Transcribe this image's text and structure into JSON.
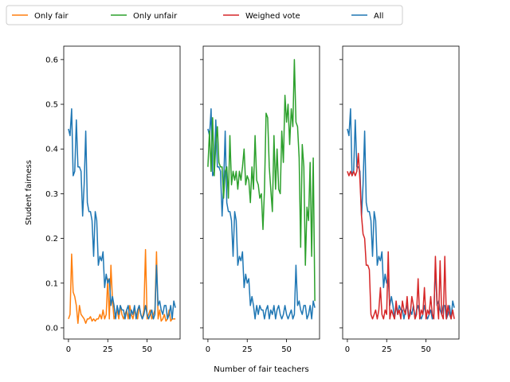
{
  "legend": [
    {
      "label": "Only fair",
      "color": "#ff7f0e"
    },
    {
      "label": "Only unfair",
      "color": "#2ca02c"
    },
    {
      "label": "Weighed vote",
      "color": "#d62728"
    },
    {
      "label": "All",
      "color": "#1f77b4"
    }
  ],
  "chart_data": {
    "type": "line",
    "xlabel": "Number of fair teachers",
    "ylabel": "Student fairness",
    "xlim": [
      -3,
      71
    ],
    "ylim": [
      -0.025,
      0.63
    ],
    "xticks": [
      0,
      25,
      50
    ],
    "yticks": [
      0.0,
      0.1,
      0.2,
      0.3,
      0.4,
      0.5,
      0.6
    ],
    "ytick_labels": [
      "0.0",
      "0.1",
      "0.2",
      "0.3",
      "0.4",
      "0.5",
      "0.6"
    ],
    "x": [
      0,
      1,
      2,
      3,
      4,
      5,
      6,
      7,
      8,
      9,
      10,
      11,
      12,
      13,
      14,
      15,
      16,
      17,
      18,
      19,
      20,
      21,
      22,
      23,
      24,
      25,
      26,
      27,
      28,
      29,
      30,
      31,
      32,
      33,
      34,
      35,
      36,
      37,
      38,
      39,
      40,
      41,
      42,
      43,
      44,
      45,
      46,
      47,
      48,
      49,
      50,
      51,
      52,
      53,
      54,
      55,
      56,
      57,
      58,
      59,
      60,
      61,
      62,
      63,
      64,
      65,
      66,
      67,
      68
    ],
    "series": [
      {
        "name": "All",
        "color": "#1f77b4",
        "values": [
          0.445,
          0.43,
          0.49,
          0.34,
          0.35,
          0.465,
          0.36,
          0.36,
          0.35,
          0.25,
          0.32,
          0.44,
          0.28,
          0.26,
          0.26,
          0.24,
          0.16,
          0.26,
          0.24,
          0.14,
          0.16,
          0.15,
          0.17,
          0.09,
          0.12,
          0.1,
          0.11,
          0.05,
          0.07,
          0.05,
          0.02,
          0.05,
          0.03,
          0.05,
          0.04,
          0.04,
          0.02,
          0.04,
          0.05,
          0.02,
          0.04,
          0.03,
          0.05,
          0.02,
          0.04,
          0.05,
          0.03,
          0.02,
          0.03,
          0.05,
          0.03,
          0.02,
          0.03,
          0.04,
          0.02,
          0.03,
          0.14,
          0.05,
          0.06,
          0.04,
          0.03,
          0.05,
          0.05,
          0.02,
          0.03,
          0.05,
          0.02,
          0.06,
          0.045
        ]
      },
      {
        "name": "Only fair",
        "color": "#ff7f0e",
        "values": [
          0.02,
          0.03,
          0.165,
          0.08,
          0.07,
          0.05,
          0.01,
          0.05,
          0.03,
          0.025,
          0.02,
          0.01,
          0.02,
          0.02,
          0.025,
          0.015,
          0.02,
          0.015,
          0.02,
          0.02,
          0.03,
          0.02,
          0.04,
          0.02,
          0.03,
          0.11,
          0.02,
          0.14,
          0.06,
          0.02,
          0.03,
          0.04,
          0.02,
          0.05,
          0.03,
          0.02,
          0.03,
          0.04,
          0.02,
          0.05,
          0.03,
          0.02,
          0.04,
          0.03,
          0.02,
          0.05,
          0.03,
          0.02,
          0.04,
          0.175,
          0.02,
          0.03,
          0.04,
          0.02,
          0.03,
          0.04,
          0.17,
          0.02,
          0.04,
          0.015,
          0.02,
          0.03,
          0.015,
          0.02,
          0.04,
          0.015,
          0.02,
          0.02,
          0.02
        ]
      },
      {
        "name": "Only unfair",
        "color": "#2ca02c",
        "values": [
          0.36,
          0.44,
          0.35,
          0.47,
          0.34,
          0.41,
          0.45,
          0.37,
          0.36,
          0.36,
          0.29,
          0.35,
          0.36,
          0.29,
          0.43,
          0.32,
          0.35,
          0.33,
          0.35,
          0.31,
          0.35,
          0.33,
          0.36,
          0.4,
          0.32,
          0.34,
          0.33,
          0.28,
          0.36,
          0.31,
          0.43,
          0.33,
          0.32,
          0.29,
          0.3,
          0.22,
          0.31,
          0.48,
          0.47,
          0.36,
          0.31,
          0.26,
          0.43,
          0.31,
          0.4,
          0.31,
          0.3,
          0.44,
          0.37,
          0.52,
          0.46,
          0.5,
          0.41,
          0.49,
          0.45,
          0.6,
          0.46,
          0.45,
          0.38,
          0.18,
          0.41,
          0.36,
          0.14,
          0.27,
          0.24,
          0.37,
          0.16,
          0.38,
          0.06
        ]
      },
      {
        "name": "Weighed vote",
        "color": "#d62728",
        "values": [
          0.35,
          0.34,
          0.35,
          0.34,
          0.35,
          0.34,
          0.35,
          0.39,
          0.33,
          0.25,
          0.21,
          0.2,
          0.14,
          0.14,
          0.13,
          0.03,
          0.02,
          0.03,
          0.04,
          0.02,
          0.04,
          0.09,
          0.03,
          0.02,
          0.04,
          0.03,
          0.17,
          0.02,
          0.04,
          0.03,
          0.02,
          0.06,
          0.03,
          0.04,
          0.02,
          0.06,
          0.04,
          0.03,
          0.07,
          0.02,
          0.03,
          0.07,
          0.05,
          0.02,
          0.03,
          0.11,
          0.02,
          0.04,
          0.03,
          0.09,
          0.02,
          0.04,
          0.03,
          0.07,
          0.03,
          0.02,
          0.16,
          0.06,
          0.02,
          0.15,
          0.03,
          0.02,
          0.16,
          0.02,
          0.05,
          0.03,
          0.02,
          0.04,
          0.02
        ]
      }
    ],
    "panels": [
      {
        "name": "panel-only-fair",
        "show_ytick_labels": true,
        "series": [
          "Only fair",
          "All"
        ]
      },
      {
        "name": "panel-only-unfair",
        "show_ytick_labels": false,
        "series": [
          "All",
          "Only unfair"
        ]
      },
      {
        "name": "panel-weighed-vote",
        "show_ytick_labels": false,
        "series": [
          "All",
          "Weighed vote"
        ]
      }
    ]
  }
}
